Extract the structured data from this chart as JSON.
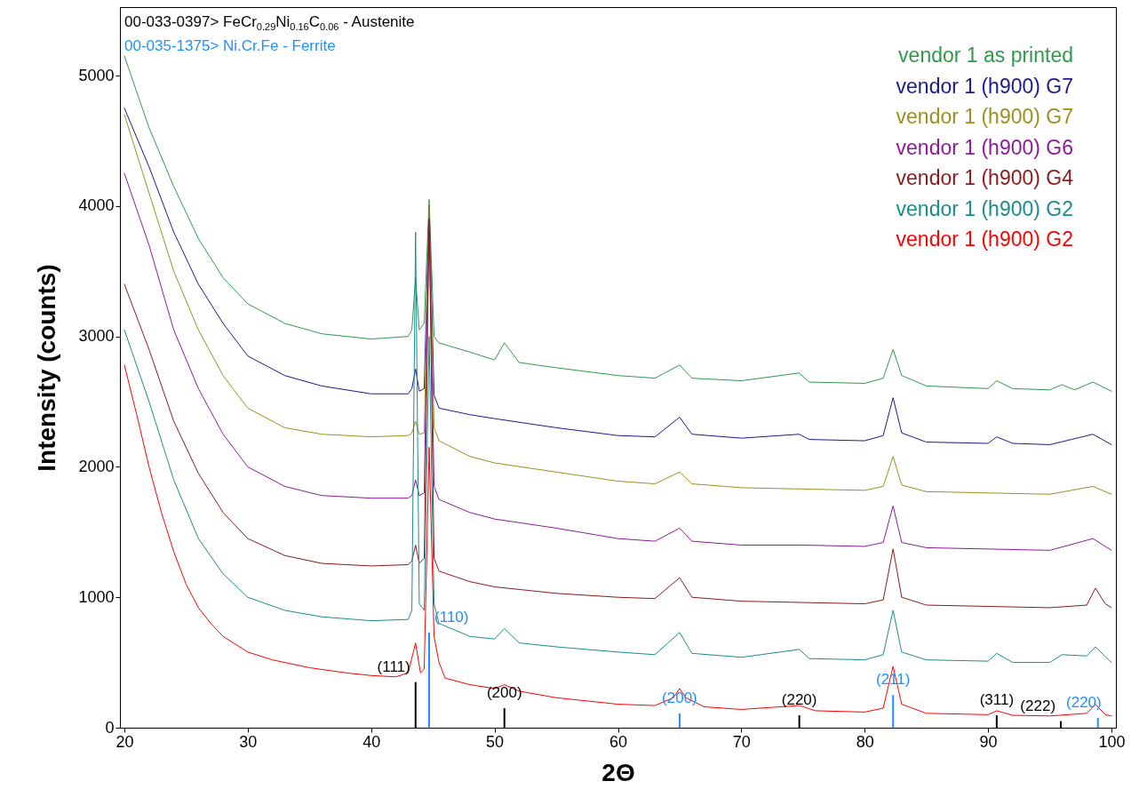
{
  "chart_data": {
    "type": "line",
    "xlabel": "2Θ",
    "ylabel": "Intensity (counts)",
    "xlim": [
      20,
      100
    ],
    "ylim": [
      0,
      5525
    ],
    "xticks": [
      20,
      30,
      40,
      50,
      60,
      70,
      80,
      90,
      100
    ],
    "yticks": [
      0,
      1000,
      2000,
      3000,
      4000,
      5000
    ],
    "grid": false,
    "legend": "top right",
    "series": [
      {
        "name": "vendor 1 as printed",
        "color": "#2e9a4a",
        "x": [
          20,
          22,
          24,
          26,
          28,
          30,
          33,
          36,
          40,
          43,
          43.3,
          43.6,
          43.9,
          44.3,
          44.7,
          45.1,
          45.5,
          48,
          50,
          50.8,
          52,
          55,
          60,
          63,
          65,
          66,
          70,
          74.7,
          75.5,
          80,
          81.5,
          82.3,
          83,
          85,
          90,
          90.7,
          92,
          95,
          96,
          97,
          98.5,
          100
        ],
        "values": [
          5150,
          4600,
          4150,
          3750,
          3450,
          3250,
          3100,
          3020,
          2980,
          3000,
          3050,
          3450,
          3050,
          3100,
          4050,
          3000,
          2950,
          2880,
          2820,
          2950,
          2800,
          2760,
          2700,
          2680,
          2780,
          2680,
          2660,
          2720,
          2650,
          2640,
          2680,
          2900,
          2700,
          2620,
          2600,
          2660,
          2600,
          2590,
          2630,
          2590,
          2650,
          2580
        ]
      },
      {
        "name": "vendor 1 (h900) G7",
        "color": "#1a1a8c",
        "x": [
          20,
          22,
          24,
          26,
          28,
          30,
          33,
          36,
          40,
          43,
          43.3,
          43.6,
          43.9,
          44.3,
          44.7,
          45.1,
          45.5,
          48,
          50,
          55,
          60,
          63,
          65,
          66,
          70,
          74.7,
          75.5,
          80,
          81.5,
          82.3,
          83,
          85,
          90,
          90.7,
          92,
          95,
          98.5,
          100
        ],
        "values": [
          4750,
          4300,
          3800,
          3400,
          3100,
          2850,
          2700,
          2620,
          2560,
          2560,
          2600,
          2750,
          2580,
          2600,
          4000,
          2550,
          2450,
          2400,
          2370,
          2300,
          2240,
          2230,
          2380,
          2250,
          2220,
          2250,
          2210,
          2200,
          2240,
          2530,
          2260,
          2190,
          2180,
          2230,
          2180,
          2170,
          2250,
          2170
        ]
      },
      {
        "name": "vendor 1 (h900) G7",
        "color": "#9a9020",
        "x": [
          20,
          22,
          24,
          26,
          28,
          30,
          33,
          36,
          40,
          43,
          43.3,
          43.6,
          43.9,
          44.3,
          44.7,
          45.1,
          45.5,
          48,
          50,
          55,
          60,
          63,
          65,
          66,
          70,
          75,
          80,
          81.5,
          82.3,
          83,
          85,
          90,
          95,
          98.5,
          100
        ],
        "values": [
          4700,
          4100,
          3500,
          3050,
          2700,
          2450,
          2300,
          2250,
          2230,
          2240,
          2260,
          2350,
          2250,
          2260,
          4000,
          2300,
          2200,
          2080,
          2030,
          1960,
          1890,
          1870,
          1960,
          1870,
          1840,
          1830,
          1820,
          1850,
          2080,
          1860,
          1810,
          1800,
          1790,
          1850,
          1790
        ]
      },
      {
        "name": "vendor 1 (h900) G6",
        "color": "#8c1a9a",
        "x": [
          20,
          22,
          24,
          26,
          28,
          30,
          33,
          36,
          40,
          43,
          43.3,
          43.6,
          43.9,
          44.3,
          44.7,
          45.1,
          45.5,
          48,
          50,
          55,
          60,
          63,
          65,
          66,
          70,
          75,
          80,
          81.5,
          82.3,
          83,
          85,
          90,
          95,
          98.5,
          100
        ],
        "values": [
          4250,
          3700,
          3050,
          2600,
          2250,
          2000,
          1850,
          1780,
          1760,
          1760,
          1780,
          1900,
          1780,
          1800,
          3900,
          1850,
          1750,
          1650,
          1600,
          1530,
          1450,
          1430,
          1530,
          1430,
          1400,
          1400,
          1390,
          1420,
          1700,
          1420,
          1380,
          1370,
          1360,
          1450,
          1360
        ]
      },
      {
        "name": "vendor 1 (h900) G4",
        "color": "#8c1a1a",
        "x": [
          20,
          22,
          24,
          26,
          28,
          30,
          33,
          36,
          40,
          43,
          43.3,
          43.6,
          43.9,
          44.3,
          44.7,
          45.1,
          45.5,
          48,
          50,
          55,
          60,
          63,
          65,
          66,
          70,
          75,
          80,
          81.5,
          82.3,
          83,
          85,
          90,
          95,
          98,
          98.7,
          99.5,
          100
        ],
        "values": [
          3400,
          2900,
          2350,
          1950,
          1650,
          1450,
          1320,
          1260,
          1240,
          1250,
          1280,
          1400,
          1260,
          1300,
          3900,
          1300,
          1200,
          1120,
          1080,
          1030,
          1000,
          990,
          1150,
          1000,
          970,
          960,
          950,
          980,
          1370,
          1000,
          940,
          930,
          920,
          940,
          1070,
          950,
          920
        ]
      },
      {
        "name": "vendor 1 (h900) G2",
        "color": "#1a8c8c",
        "x": [
          20,
          22,
          24,
          26,
          28,
          30,
          33,
          36,
          40,
          43,
          43.3,
          43.6,
          43.9,
          44.3,
          44.7,
          45.1,
          45.5,
          48,
          50,
          50.8,
          52,
          55,
          60,
          63,
          65,
          66,
          70,
          74.7,
          75.5,
          80,
          81.5,
          82.3,
          83,
          85,
          90,
          90.7,
          92,
          95,
          96,
          98,
          98.7,
          100
        ],
        "values": [
          3050,
          2500,
          1900,
          1450,
          1180,
          1000,
          900,
          850,
          820,
          830,
          900,
          3800,
          950,
          900,
          3000,
          950,
          800,
          700,
          680,
          760,
          650,
          620,
          580,
          560,
          730,
          570,
          540,
          600,
          530,
          520,
          560,
          900,
          580,
          520,
          510,
          570,
          500,
          500,
          560,
          550,
          620,
          500
        ]
      },
      {
        "name": "vendor 1 (h900) G2",
        "color": "#ff0000",
        "x": [
          20,
          21,
          22,
          23,
          24,
          25,
          26,
          27,
          28,
          30,
          32,
          35,
          38,
          40,
          42,
          43,
          43.6,
          44,
          44.3,
          44.7,
          45.1,
          45.5,
          46,
          48,
          50,
          50.8,
          52,
          55,
          60,
          63,
          64.5,
          65,
          65.5,
          67,
          70,
          74.7,
          76,
          80,
          81.5,
          82.3,
          83,
          85,
          90,
          90.7,
          92,
          95,
          98,
          98.7,
          99.5,
          100
        ],
        "values": [
          2780,
          2400,
          2000,
          1650,
          1350,
          1100,
          920,
          800,
          700,
          580,
          520,
          460,
          420,
          400,
          390,
          420,
          650,
          420,
          450,
          2150,
          700,
          500,
          380,
          330,
          300,
          330,
          280,
          230,
          180,
          170,
          230,
          300,
          230,
          160,
          140,
          170,
          130,
          120,
          150,
          470,
          180,
          110,
          100,
          130,
          95,
          90,
          110,
          180,
          100,
          90
        ]
      },
      {
        "name": "00-033-0397> FeCr$_{0.29}$Ni$_{0.16}$C$_{0.06}$ - Austenite",
        "type": "bar",
        "color": "#000000",
        "x": [
          43.6,
          50.8,
          74.7,
          90.7,
          95.9
        ],
        "values": [
          350,
          150,
          95,
          95,
          50
        ]
      },
      {
        "name": "00-035-1375> Ni.Cr.Fe - Ferrite",
        "type": "bar",
        "color": "#1e90ff",
        "x": [
          44.7,
          65.0,
          82.3,
          98.9
        ],
        "values": [
          730,
          110,
          250,
          75
        ]
      }
    ],
    "annotations": [
      {
        "text": "(111)",
        "x": 43.6,
        "y": 350
      },
      {
        "text": "(110)",
        "x": 44.7,
        "y": 730
      },
      {
        "text": "(200)",
        "x": 50.8,
        "y": 150
      },
      {
        "text": "(200)",
        "x": 65.0,
        "y": 110
      },
      {
        "text": "(220)",
        "x": 74.7,
        "y": 95
      },
      {
        "text": "(211)",
        "x": 82.3,
        "y": 250
      },
      {
        "text": "(311)",
        "x": 90.7,
        "y": 95
      },
      {
        "text": "(222)",
        "x": 95.9,
        "y": 50
      },
      {
        "text": "(220)",
        "x": 98.9,
        "y": 75
      }
    ]
  }
}
